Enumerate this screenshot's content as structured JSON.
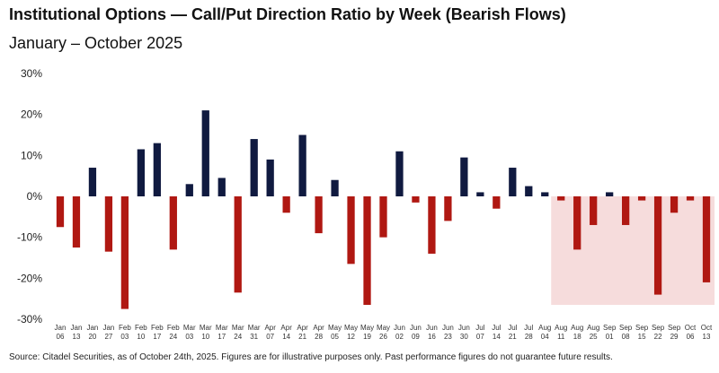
{
  "title": "Institutional Options — Call/Put Direction Ratio by Week (Bearish Flows)",
  "subtitle": "January – October 2025",
  "source": "Source: Citadel Securities, as of October 24th, 2025. Figures are for illustrative purposes only. Past performance figures do not guarantee future results.",
  "colors": {
    "positive": "#101a40",
    "negative": "#b01812",
    "highlight": "#f6dcdc"
  },
  "chart_data": {
    "type": "bar",
    "title": "Institutional Options — Call/Put Direction Ratio by Week (Bearish Flows)",
    "subtitle": "January – October 2025",
    "xlabel": "",
    "ylabel": "",
    "ylim": [
      -30,
      30
    ],
    "yticks": [
      30,
      20,
      10,
      0,
      -10,
      -20,
      -30
    ],
    "ytick_labels": [
      "30%",
      "20%",
      "10%",
      "0%",
      "-10%",
      "-20%",
      "-30%"
    ],
    "grid": false,
    "highlight_range": [
      "Aug 11",
      "Oct 13"
    ],
    "highlight_ylim": [
      -26.5,
      0
    ],
    "categories": [
      [
        "Jan",
        "06"
      ],
      [
        "Jan",
        "13"
      ],
      [
        "Jan",
        "20"
      ],
      [
        "Jan",
        "27"
      ],
      [
        "Feb",
        "03"
      ],
      [
        "Feb",
        "10"
      ],
      [
        "Feb",
        "17"
      ],
      [
        "Feb",
        "24"
      ],
      [
        "Mar",
        "03"
      ],
      [
        "Mar",
        "10"
      ],
      [
        "Mar",
        "17"
      ],
      [
        "Mar",
        "24"
      ],
      [
        "Mar",
        "31"
      ],
      [
        "Apr",
        "07"
      ],
      [
        "Apr",
        "14"
      ],
      [
        "Apr",
        "21"
      ],
      [
        "Apr",
        "28"
      ],
      [
        "May",
        "05"
      ],
      [
        "May",
        "12"
      ],
      [
        "May",
        "19"
      ],
      [
        "May",
        "26"
      ],
      [
        "Jun",
        "02"
      ],
      [
        "Jun",
        "09"
      ],
      [
        "Jun",
        "16"
      ],
      [
        "Jun",
        "23"
      ],
      [
        "Jun",
        "30"
      ],
      [
        "Jul",
        "07"
      ],
      [
        "Jul",
        "14"
      ],
      [
        "Jul",
        "21"
      ],
      [
        "Jul",
        "28"
      ],
      [
        "Aug",
        "04"
      ],
      [
        "Aug",
        "11"
      ],
      [
        "Aug",
        "18"
      ],
      [
        "Aug",
        "25"
      ],
      [
        "Sep",
        "01"
      ],
      [
        "Sep",
        "08"
      ],
      [
        "Sep",
        "15"
      ],
      [
        "Sep",
        "22"
      ],
      [
        "Sep",
        "29"
      ],
      [
        "Oct",
        "06"
      ],
      [
        "Oct",
        "13"
      ]
    ],
    "values": [
      -7.5,
      -12.5,
      7,
      -13.5,
      -27.5,
      11.5,
      13,
      -13,
      3,
      21,
      4.5,
      -23.5,
      14,
      9,
      -4,
      15,
      -9,
      4,
      -16.5,
      -26.5,
      -10,
      11,
      -1.5,
      -14,
      -6,
      9.5,
      1,
      -3,
      7,
      2.5,
      1,
      -1,
      -13,
      -7,
      1,
      -7,
      -1,
      -24,
      -4,
      -1,
      -21
    ]
  }
}
